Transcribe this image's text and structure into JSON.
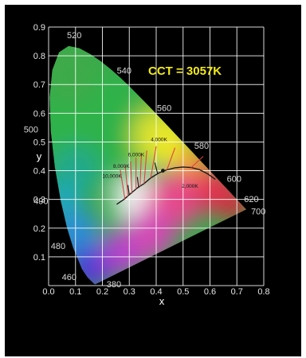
{
  "chart_data": {
    "type": "scatter",
    "title": "",
    "annotation": "CCT = 3057K",
    "xlabel": "x",
    "ylabel": "y",
    "xlim": [
      0,
      0.8
    ],
    "ylim": [
      0,
      0.9
    ],
    "xticks": [
      "0.0",
      "0.1",
      "0.2",
      "0.3",
      "0.4",
      "0.5",
      "0.6",
      "0.7",
      "0.8"
    ],
    "yticks": [
      "0.1",
      "0.2",
      "0.3",
      "0.4",
      "0.5",
      "0.6",
      "0.7",
      "0.8",
      "0.9"
    ],
    "grid": true,
    "colors": {
      "background": "#000000",
      "grid": "#ffffff",
      "annotation": "#f2ea18",
      "locus": "#1a1a1a",
      "isotherm": "#e23a3a"
    },
    "spectral_locus_labels": [
      {
        "label": "380",
        "x": 0.174,
        "y": 0.005
      },
      {
        "label": "460",
        "x": 0.144,
        "y": 0.03
      },
      {
        "label": "480",
        "x": 0.091,
        "y": 0.133
      },
      {
        "label": "490",
        "x": 0.045,
        "y": 0.295
      },
      {
        "label": "500",
        "x": 0.008,
        "y": 0.538
      },
      {
        "label": "520",
        "x": 0.074,
        "y": 0.834
      },
      {
        "label": "540",
        "x": 0.23,
        "y": 0.754
      },
      {
        "label": "560",
        "x": 0.373,
        "y": 0.624
      },
      {
        "label": "580",
        "x": 0.512,
        "y": 0.487
      },
      {
        "label": "600",
        "x": 0.627,
        "y": 0.373
      },
      {
        "label": "620",
        "x": 0.691,
        "y": 0.308
      },
      {
        "label": "700",
        "x": 0.735,
        "y": 0.265
      }
    ],
    "temperature_labels": [
      "10,000K",
      "8,000K",
      "6,000K",
      "4,000K",
      "2,000K"
    ],
    "measured_point": {
      "label": "CCT = 3057K",
      "x": 0.425,
      "y": 0.4
    }
  }
}
